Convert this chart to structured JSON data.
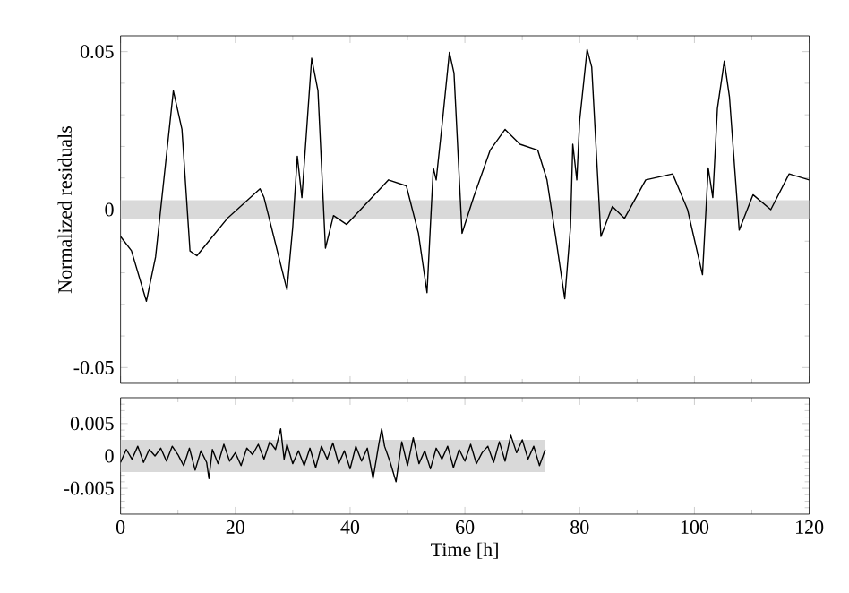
{
  "chart_data": [
    {
      "type": "line",
      "ylabel": "Normalized residuals",
      "xlim": [
        0,
        120
      ],
      "ylim": [
        -0.055,
        0.055
      ],
      "xticks": [
        0,
        {
          "value": 10,
          "label": null
        },
        20,
        {
          "value": 30,
          "label": null
        },
        40,
        {
          "value": 50,
          "label": null
        },
        60,
        {
          "value": 70,
          "label": null
        },
        80,
        {
          "value": 90,
          "label": null
        },
        100,
        {
          "value": 110,
          "label": null
        },
        120
      ],
      "yticks": [
        -0.05,
        {
          "value": -0.04,
          "label": null
        },
        {
          "value": -0.03,
          "label": null
        },
        {
          "value": -0.02,
          "label": null
        },
        {
          "value": -0.01,
          "label": null
        },
        0,
        {
          "value": 0.01,
          "label": null
        },
        {
          "value": 0.02,
          "label": null
        },
        {
          "value": 0.03,
          "label": null
        },
        {
          "value": 0.04,
          "label": null
        },
        0.05
      ],
      "tick_labels": "y",
      "grid": false,
      "bands": [
        {
          "axis": "y",
          "from": -0.003,
          "to": 0.003,
          "color": "#d9d9d9"
        }
      ],
      "series": [
        {
          "color": "#000000",
          "x": [
            0,
            1.9,
            4.5,
            6.1,
            7.6,
            9.2,
            10.7,
            12.1,
            13.3,
            18.6,
            24.3,
            25,
            29,
            30,
            30.8,
            31.6,
            33.3,
            34.4,
            35.7,
            37.1,
            39.4,
            46.7,
            49.8,
            51.9,
            53.4,
            54.5,
            55,
            56.1,
            57.3,
            58.1,
            59.5,
            61.5,
            64.4,
            67,
            69.6,
            72.7,
            74.3,
            75.8,
            77.4,
            78.4,
            78.8,
            79.5,
            80,
            81.3,
            82.1,
            83.7,
            85.7,
            87.8,
            91.5,
            96.2,
            98.8,
            101.4,
            102.4,
            103.2,
            104,
            105.2,
            106.1,
            107.8,
            110.2,
            113.3,
            116.5,
            120
          ],
          "values": [
            -0.0085,
            -0.013,
            -0.029,
            -0.015,
            0.0104,
            0.0376,
            0.0254,
            -0.0131,
            -0.0146,
            -0.0028,
            0.0066,
            0.0038,
            -0.0254,
            -0.0056,
            0.0169,
            0.0038,
            0.0479,
            0.0376,
            -0.0122,
            -0.0019,
            -0.0047,
            0.0094,
            0.0075,
            -0.0075,
            -0.0263,
            0.0132,
            0.0094,
            0.0282,
            0.0498,
            0.0432,
            -0.0075,
            0.0038,
            0.0188,
            0.0254,
            0.0207,
            0.0188,
            0.0094,
            -0.0085,
            -0.0282,
            -0.0056,
            0.0207,
            0.0094,
            0.0282,
            0.0507,
            0.0451,
            -0.0085,
            0.001,
            -0.0028,
            0.0094,
            0.0113,
            0,
            -0.0206,
            0.0132,
            0.0038,
            0.032,
            0.047,
            0.0357,
            -0.0065,
            0.0047,
            0,
            0.0113,
            0.0094
          ]
        }
      ]
    },
    {
      "type": "line",
      "xlabel": "Time [h]",
      "xlim": [
        0,
        120
      ],
      "ylim": [
        -0.009,
        0.009
      ],
      "xticks": [
        0,
        {
          "value": 10,
          "label": null
        },
        20,
        {
          "value": 30,
          "label": null
        },
        40,
        {
          "value": 50,
          "label": null
        },
        60,
        {
          "value": 70,
          "label": null
        },
        80,
        {
          "value": 90,
          "label": null
        },
        100,
        {
          "value": 110,
          "label": null
        },
        120
      ],
      "yticks": [
        {
          "value": -0.008,
          "label": null
        },
        {
          "value": -0.007,
          "label": null
        },
        {
          "value": -0.006,
          "label": null
        },
        -0.005,
        {
          "value": -0.004,
          "label": null
        },
        {
          "value": -0.003,
          "label": null
        },
        {
          "value": -0.002,
          "label": null
        },
        {
          "value": -0.001,
          "label": null
        },
        0,
        {
          "value": 0.001,
          "label": null
        },
        {
          "value": 0.002,
          "label": null
        },
        {
          "value": 0.003,
          "label": null
        },
        {
          "value": 0.004,
          "label": null
        },
        0.005,
        {
          "value": 0.006,
          "label": null
        },
        {
          "value": 0.007,
          "label": null
        },
        {
          "value": 0.008,
          "label": null
        }
      ],
      "grid": false,
      "bands": [
        {
          "axis": "y",
          "from": -0.0025,
          "to": 0.0025,
          "color": "#d9d9d9"
        }
      ],
      "series": [
        {
          "color": "#000000",
          "x": [
            0,
            1,
            2,
            3,
            4,
            5,
            6,
            7,
            8,
            9,
            10,
            11,
            12,
            13,
            14,
            15,
            15.4,
            16,
            17,
            18,
            19,
            20,
            21,
            22,
            23,
            24,
            25,
            26,
            27,
            27.9,
            28.5,
            29,
            30,
            31,
            32,
            33,
            34,
            35,
            36,
            37,
            38,
            39,
            40,
            41,
            42,
            43,
            44,
            45,
            45.5,
            46,
            47,
            48,
            49,
            50,
            51,
            52,
            53,
            54,
            55,
            56,
            57,
            58,
            59,
            60,
            61,
            62,
            63,
            64,
            65,
            66,
            67,
            68,
            69,
            70,
            71,
            72,
            73,
            74
          ],
          "values": [
            -0.001,
            0.001,
            -0.0005,
            0.0015,
            -0.001,
            0.001,
            0,
            0.0012,
            -0.0008,
            0.0015,
            0.0002,
            -0.0015,
            0.0012,
            -0.0022,
            0.0008,
            -0.001,
            -0.0035,
            0.001,
            -0.0012,
            0.0018,
            -0.0008,
            0.0005,
            -0.0015,
            0.0012,
            0.0002,
            0.0018,
            -0.0005,
            0.0022,
            0.001,
            0.0042,
            -0.0005,
            0.0018,
            -0.0012,
            0.0008,
            -0.0015,
            0.0012,
            -0.0018,
            0.0015,
            -0.0005,
            0.002,
            -0.0012,
            0.0008,
            -0.002,
            0.0015,
            -0.0008,
            0.0012,
            -0.0035,
            0.0018,
            0.0042,
            0.0015,
            -0.001,
            -0.004,
            0.0022,
            -0.0015,
            0.0028,
            -0.0012,
            0.0008,
            -0.002,
            0.0012,
            -0.0005,
            0.0015,
            -0.0018,
            0.001,
            -0.0008,
            0.0018,
            -0.0012,
            0.0005,
            0.0015,
            -0.001,
            0.0022,
            -0.0008,
            0.0032,
            0.0005,
            0.0025,
            -0.0005,
            0.0015,
            -0.0015,
            0.001
          ]
        }
      ]
    }
  ]
}
